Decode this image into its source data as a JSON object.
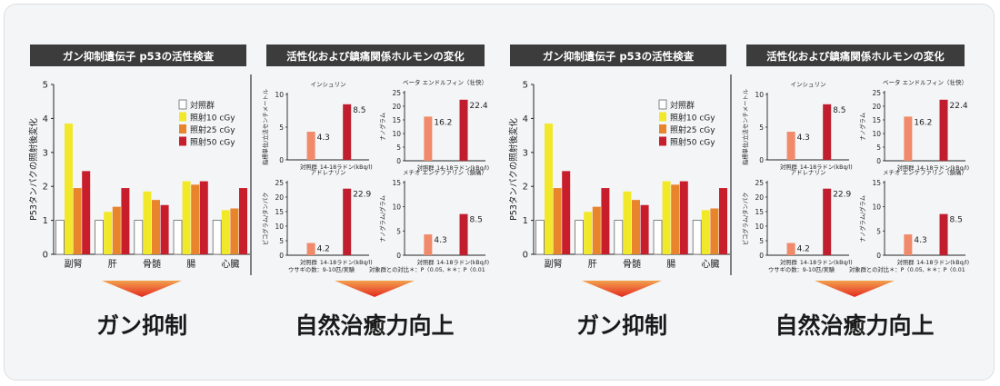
{
  "colors": {
    "control": "#ffffff",
    "dose10": "#f2e82a",
    "dose25": "#e8842b",
    "dose50": "#c81e2c",
    "hormone_control": "#f08a6a",
    "hormone_radon": "#c01e2e",
    "title_bar": "#3c3c3c",
    "arrow": "#e32a1f"
  },
  "panels": [
    {
      "title": "ガン抑制遺伝子 p53の活性検査",
      "result": "ガン抑制",
      "chart_data": {
        "type": "bar",
        "ylabel": "P53タンパクの照射後変化",
        "ylim": [
          0,
          5
        ],
        "yticks": [
          "0",
          "1",
          "2",
          "3",
          "4",
          "5"
        ],
        "categories": [
          "副腎",
          "肝",
          "骨髄",
          "腸",
          "心臓"
        ],
        "legend": [
          "対照群",
          "照射10 cGy",
          "照射25 cGy",
          "照射50 cGy"
        ],
        "series": [
          {
            "name": "対照群",
            "values": [
              1.0,
              1.0,
              1.0,
              1.0,
              1.0
            ]
          },
          {
            "name": "照射10 cGy",
            "values": [
              3.85,
              1.25,
              1.85,
              2.15,
              1.3
            ]
          },
          {
            "name": "照射25 cGy",
            "values": [
              1.95,
              1.4,
              1.6,
              2.05,
              1.35
            ]
          },
          {
            "name": "照射50 cGy",
            "values": [
              2.45,
              1.95,
              1.45,
              2.15,
              1.95
            ]
          }
        ]
      }
    },
    {
      "title": "活性化および鎮痛関係ホルモンの変化",
      "result": "自然治癒力向上",
      "footnote_left": "ウサギの数：9-10匹/実験",
      "footnote_right": "対象群との対比＊：P〈0.05, ＊＊：P〈0.01",
      "chart_data": {
        "type": "bar",
        "charts": [
          {
            "title": "インシュリン",
            "ylabel": "指標単位/立法センチメートル",
            "ylim": [
              0,
              10
            ],
            "yticks": [
              "0",
              "5",
              "10"
            ],
            "categories": [
              "対照群",
              "14-18ラドン(kBq/l)"
            ],
            "values": [
              4.3,
              8.5
            ],
            "value_labels": [
              "4.3",
              "8.5"
            ]
          },
          {
            "title": "ベータ エンドルフィン（壮快）",
            "ylabel": "ナノグラム",
            "ylim": [
              0,
              25
            ],
            "yticks": [
              "0",
              "5",
              "10",
              "15",
              "20",
              "25"
            ],
            "categories": [
              "対照群",
              "14-18ラドン(kBq/l)"
            ],
            "values": [
              16.2,
              22.4
            ],
            "value_labels": [
              "16.2",
              "22.4"
            ]
          },
          {
            "title": "アドレナリン",
            "ylabel": "ピコグラム/タンパク",
            "ylim": [
              0,
              25
            ],
            "yticks": [
              "0",
              "5",
              "10",
              "15",
              "20",
              "25"
            ],
            "categories": [
              "対照群",
              "14-18ラドン(kBq/l)"
            ],
            "values": [
              4.2,
              22.9
            ],
            "value_labels": [
              "4.2",
              "22.9"
            ]
          },
          {
            "title": "メチオ エンケファリン（鎮痛）",
            "ylabel": "ナノグラム/グラム",
            "ylim": [
              0,
              15
            ],
            "yticks": [
              "0",
              "5",
              "10",
              "15"
            ],
            "categories": [
              "対照群",
              "14-18ラドン(kBq/l)"
            ],
            "values": [
              4.3,
              8.5
            ],
            "value_labels": [
              "4.3",
              "8.5"
            ]
          }
        ]
      }
    }
  ]
}
